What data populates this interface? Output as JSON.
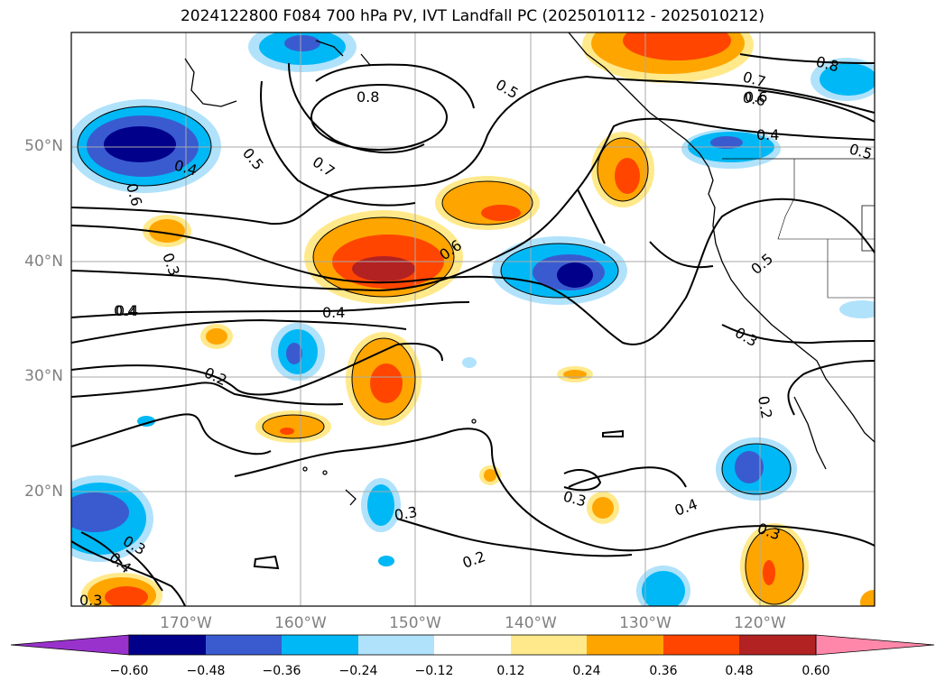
{
  "title": "2024122800 F084 700 hPa PV, IVT Landfall PC (2025010112 - 2025010212)",
  "map": {
    "lat_labels": [
      "50°N",
      "40°N",
      "30°N",
      "20°N"
    ],
    "lon_labels": [
      "170°W",
      "160°W",
      "150°W",
      "140°W",
      "130°W",
      "120°W"
    ],
    "contour_labels": [
      "0.8",
      "0.5",
      "0.5",
      "0.7",
      "0.6",
      "0.4",
      "0.6",
      "0.6",
      "0.3",
      "0.4",
      "0.4",
      "0.2",
      "0.3",
      "0.3",
      "0.4",
      "0.3",
      "0.2",
      "0.3",
      "0.3",
      "0.4",
      "0.5",
      "0.7",
      "0.6",
      "0.8",
      "0.4",
      "0.5",
      "0.4",
      "0.3",
      "0.2"
    ],
    "colors": {
      "neg_darkest": "#00008b",
      "neg_dark": "#3a5bd0",
      "neg_mid": "#00b8f5",
      "neg_light": "#b0e2fb",
      "pos_light": "#ffe98a",
      "pos_mid": "#ffa500",
      "pos_dark": "#ff4500",
      "pos_darkest": "#b22222",
      "coast": "#000000",
      "grid": "#aaaaaa"
    }
  },
  "colorbar": {
    "ticks": [
      "−0.60",
      "−0.48",
      "−0.36",
      "−0.24",
      "−0.12",
      "0.12",
      "0.24",
      "0.36",
      "0.48",
      "0.60"
    ],
    "colors": [
      "#9932cc",
      "#00008b",
      "#3a5bd0",
      "#00b8f5",
      "#b0e2fb",
      "#ffffff",
      "#ffe98a",
      "#ffa500",
      "#ff4500",
      "#b22222",
      "#ff88aa"
    ]
  }
}
